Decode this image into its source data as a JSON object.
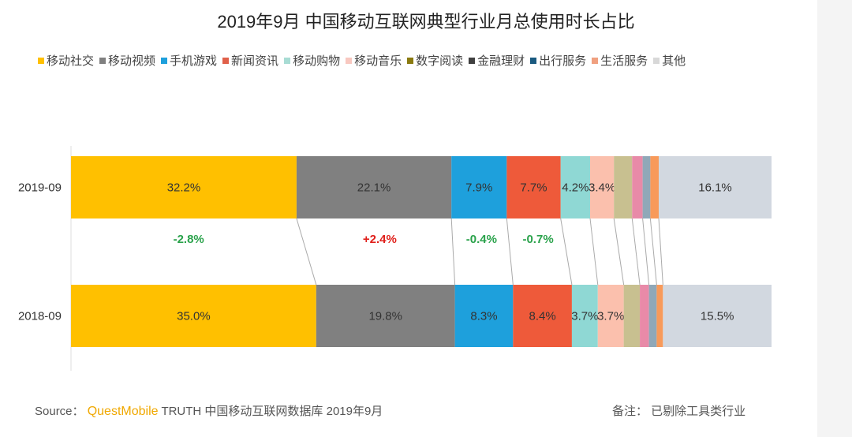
{
  "chart_data": {
    "type": "bar",
    "orientation": "horizontal-stacked-100",
    "title": "2019年9月 中国移动互联网典型行业月总使用时长占比",
    "categories": [
      "2019-09",
      "2018-09"
    ],
    "series": [
      {
        "name": "移动社交",
        "color": "#ffc000",
        "legend_color": "#ffc000",
        "values": [
          32.2,
          35.0
        ],
        "labels": [
          "32.2%",
          "35.0%"
        ],
        "change": "-2.8%",
        "change_color": "#2aa24b"
      },
      {
        "name": "移动视频",
        "color": "#808080",
        "legend_color": "#808080",
        "values": [
          22.1,
          19.8
        ],
        "labels": [
          "22.1%",
          "19.8%"
        ],
        "change": "+2.4%",
        "change_color": "#e0201b"
      },
      {
        "name": "手机游戏",
        "color": "#1ea0dc",
        "legend_color": "#1ea0dc",
        "values": [
          7.9,
          8.3
        ],
        "labels": [
          "7.9%",
          "8.3%"
        ],
        "change": "-0.4%",
        "change_color": "#2aa24b"
      },
      {
        "name": "新闻资讯",
        "color": "#ee5a3a",
        "legend_color": "#e0604a",
        "values": [
          7.7,
          8.4
        ],
        "labels": [
          "7.7%",
          "8.4%"
        ],
        "change": "-0.7%",
        "change_color": "#2aa24b"
      },
      {
        "name": "移动购物",
        "color": "#8fd8d4",
        "legend_color": "#a8dcd4",
        "values": [
          4.2,
          3.7
        ],
        "labels": [
          "4.2%",
          "3.7%"
        ],
        "change": ""
      },
      {
        "name": "移动音乐",
        "color": "#fbc0ad",
        "legend_color": "#f8c8c0",
        "values": [
          3.4,
          3.7
        ],
        "labels": [
          "3.4%",
          "3.7%"
        ],
        "change": ""
      },
      {
        "name": "数字阅读",
        "color": "#c8c090",
        "legend_color": "#8a7a10",
        "values": [
          2.6,
          2.3
        ],
        "labels": [
          "",
          ""
        ],
        "change": ""
      },
      {
        "name": "金融理财",
        "color": "#e88aa8",
        "legend_color": "#404040",
        "values": [
          1.5,
          1.3
        ],
        "labels": [
          "",
          ""
        ],
        "change": ""
      },
      {
        "name": "出行服务",
        "color": "#90a8b8",
        "legend_color": "#1a5a80",
        "values": [
          1.1,
          1.1
        ],
        "labels": [
          "",
          ""
        ],
        "change": ""
      },
      {
        "name": "生活服务",
        "color": "#f89a5a",
        "legend_color": "#f0a080",
        "values": [
          1.2,
          0.9
        ],
        "labels": [
          "",
          ""
        ],
        "change": ""
      },
      {
        "name": "其他",
        "color": "#d2d8e0",
        "legend_color": "#d8d8d8",
        "values": [
          16.1,
          15.5
        ],
        "labels": [
          "16.1%",
          "15.5%"
        ],
        "change": ""
      }
    ],
    "xlim": [
      0,
      100
    ],
    "grid": false,
    "legend_position": "top"
  },
  "footer": {
    "source_label": "Source：",
    "brand": "QuestMobile",
    "source_text": "TRUTH 中国移动互联网数据库 2019年9月",
    "note": "备注：  已剔除工具类行业"
  }
}
